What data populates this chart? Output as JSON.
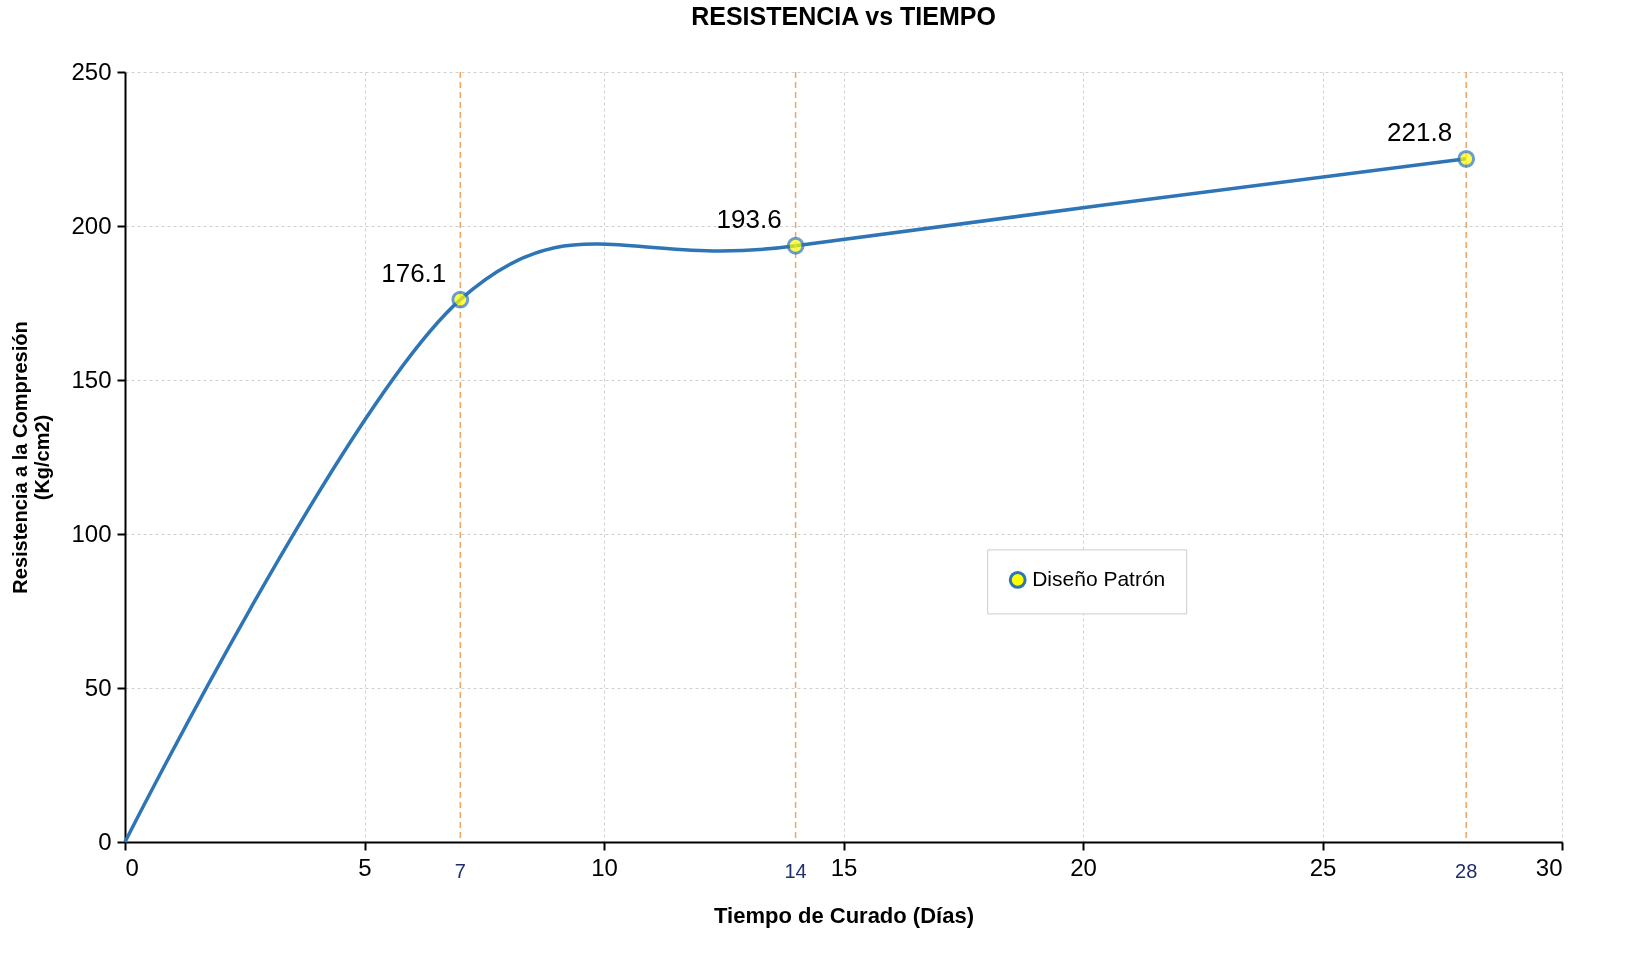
{
  "chart_data": {
    "type": "line",
    "title": "RESISTENCIA vs TIEMPO",
    "xlabel": "Tiempo de Curado (Días)",
    "ylabel": "Resistencia a la Compresión\n(Kg/cm2)",
    "x": [
      0,
      7,
      14,
      28
    ],
    "series": [
      {
        "name": "Diseño Patrón",
        "color": "#2e75b6",
        "values": [
          0,
          176.1,
          193.6,
          221.8
        ],
        "value_labels": [
          null,
          "176.1",
          "193.6",
          "221.8"
        ]
      }
    ],
    "xlim": [
      0,
      30
    ],
    "xticks": [
      0,
      5,
      10,
      15,
      20,
      25,
      30
    ],
    "ylim": [
      0,
      250
    ],
    "yticks": [
      0,
      50,
      100,
      150,
      200,
      250
    ],
    "ref_lines": [
      {
        "axis": "x",
        "value": 7,
        "label": "7",
        "color": "#f4a460",
        "line_style": "dashed"
      },
      {
        "axis": "x",
        "value": 14,
        "label": "14",
        "color": "#f4a460",
        "line_style": "dashed"
      },
      {
        "axis": "x",
        "value": 28,
        "label": "28",
        "color": "#f4a460",
        "line_style": "dashed"
      }
    ],
    "grid": true,
    "legend": "right",
    "marker": "circle",
    "line_style": "solid"
  }
}
